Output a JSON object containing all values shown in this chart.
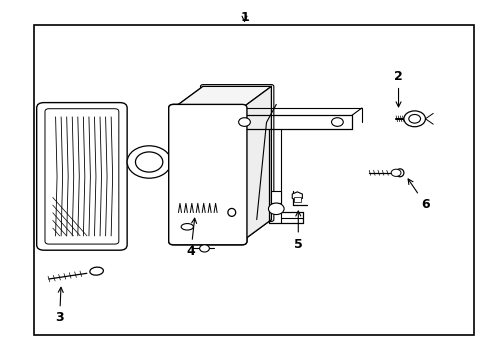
{
  "bg_color": "#ffffff",
  "border_color": "#000000",
  "line_color": "#000000",
  "fig_width": 4.89,
  "fig_height": 3.6,
  "dpi": 100,
  "border": [
    0.07,
    0.07,
    0.97,
    0.93
  ]
}
